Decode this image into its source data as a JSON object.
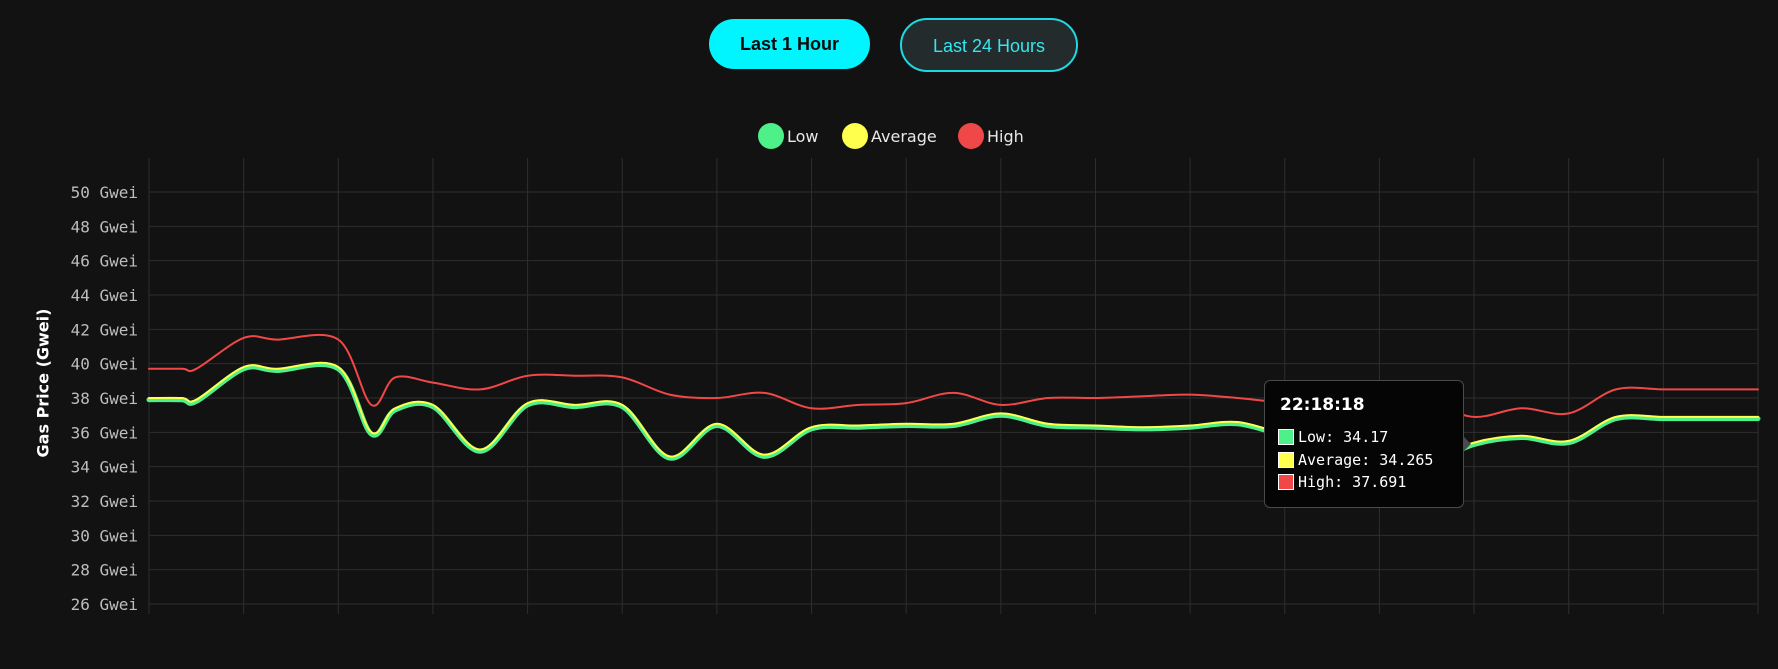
{
  "controls": {
    "range_buttons": [
      {
        "label": "Last 1 Hour",
        "active": true
      },
      {
        "label": "Last 24 Hours",
        "active": false
      }
    ]
  },
  "colors": {
    "low": "#4ef08a",
    "average": "#ffff4d",
    "high": "#f04848",
    "accent": "#00f5ff",
    "background": "#121212",
    "grid": "#2e2e2e"
  },
  "tooltip": {
    "time": "22:18:18",
    "rows": [
      {
        "label": "Low: 34.17",
        "color": "#4ef08a"
      },
      {
        "label": "Average: 34.265",
        "color": "#ffff4d"
      },
      {
        "label": "High: 37.691",
        "color": "#f04848"
      }
    ]
  },
  "chart_data": {
    "type": "line",
    "title": "",
    "xlabel": "",
    "ylabel": "Gas Price (Gwei)",
    "ylim": [
      26,
      50
    ],
    "yticks": [
      "50 Gwei",
      "48 Gwei",
      "46 Gwei",
      "44 Gwei",
      "42 Gwei",
      "40 Gwei",
      "38 Gwei",
      "36 Gwei",
      "34 Gwei",
      "32 Gwei",
      "30 Gwei",
      "28 Gwei",
      "26 Gwei"
    ],
    "grid": true,
    "legend_position": "top-center",
    "x": [
      0,
      0.35,
      0.5,
      1,
      1.35,
      2,
      2.35,
      2.6,
      3,
      3.5,
      4,
      4.5,
      5,
      5.5,
      6,
      6.5,
      7,
      7.5,
      8,
      8.5,
      9,
      9.5,
      10,
      10.5,
      11,
      11.5,
      12,
      12.5,
      13,
      13.5,
      14,
      14.5,
      15,
      15.5,
      16,
      16.5,
      17
    ],
    "series": [
      {
        "name": "Low",
        "values": [
          37.9,
          37.9,
          37.8,
          39.7,
          39.6,
          39.7,
          35.9,
          37.3,
          37.5,
          34.9,
          37.6,
          37.5,
          37.5,
          34.5,
          36.4,
          34.6,
          36.2,
          36.3,
          36.4,
          36.4,
          37.0,
          36.4,
          36.3,
          36.2,
          36.3,
          36.5,
          35.8,
          35.3,
          34.9,
          34.2,
          35.3,
          35.7,
          35.4,
          36.8,
          36.8,
          36.8,
          36.8
        ]
      },
      {
        "name": "Average",
        "values": [
          38.0,
          38.0,
          37.9,
          39.8,
          39.7,
          39.8,
          36.0,
          37.4,
          37.6,
          35.0,
          37.7,
          37.6,
          37.6,
          34.6,
          36.5,
          34.7,
          36.3,
          36.4,
          36.5,
          36.5,
          37.1,
          36.5,
          36.4,
          36.3,
          36.4,
          36.6,
          35.9,
          35.4,
          35.0,
          34.265,
          35.4,
          35.8,
          35.5,
          36.9,
          36.9,
          36.9,
          36.9
        ]
      },
      {
        "name": "High",
        "values": [
          39.7,
          39.7,
          39.7,
          41.5,
          41.4,
          41.4,
          37.6,
          39.2,
          38.9,
          38.5,
          39.3,
          39.3,
          39.2,
          38.2,
          38.0,
          38.3,
          37.4,
          37.6,
          37.7,
          38.3,
          37.6,
          38.0,
          38.0,
          38.1,
          38.2,
          38.0,
          37.7,
          37.4,
          37.3,
          37.691,
          36.9,
          37.4,
          37.1,
          38.5,
          38.5,
          38.5,
          38.5
        ]
      }
    ],
    "highlight_index": 29
  }
}
